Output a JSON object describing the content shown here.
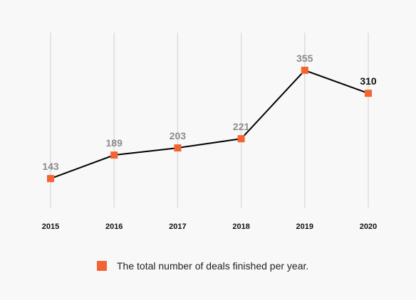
{
  "chart_data": {
    "type": "line",
    "categories": [
      "2015",
      "2016",
      "2017",
      "2018",
      "2019",
      "2020"
    ],
    "series": [
      {
        "name": "The total number of deals finished per year.",
        "values": [
          143,
          189,
          203,
          221,
          355,
          310
        ]
      }
    ],
    "data_labels": [
      "143",
      "189",
      "203",
      "221",
      "355",
      "310"
    ],
    "highlighted_label_index": 5,
    "ylim": [
      89,
      430
    ],
    "grid": "vertical",
    "legend_position": "bottom",
    "colors": {
      "marker": "#f26430",
      "line": "#000000",
      "grid": "#dddddd",
      "label": "#8c8c8c",
      "label_highlight": "#111111"
    }
  },
  "legend": {
    "label": "The total number of deals finished per year."
  }
}
